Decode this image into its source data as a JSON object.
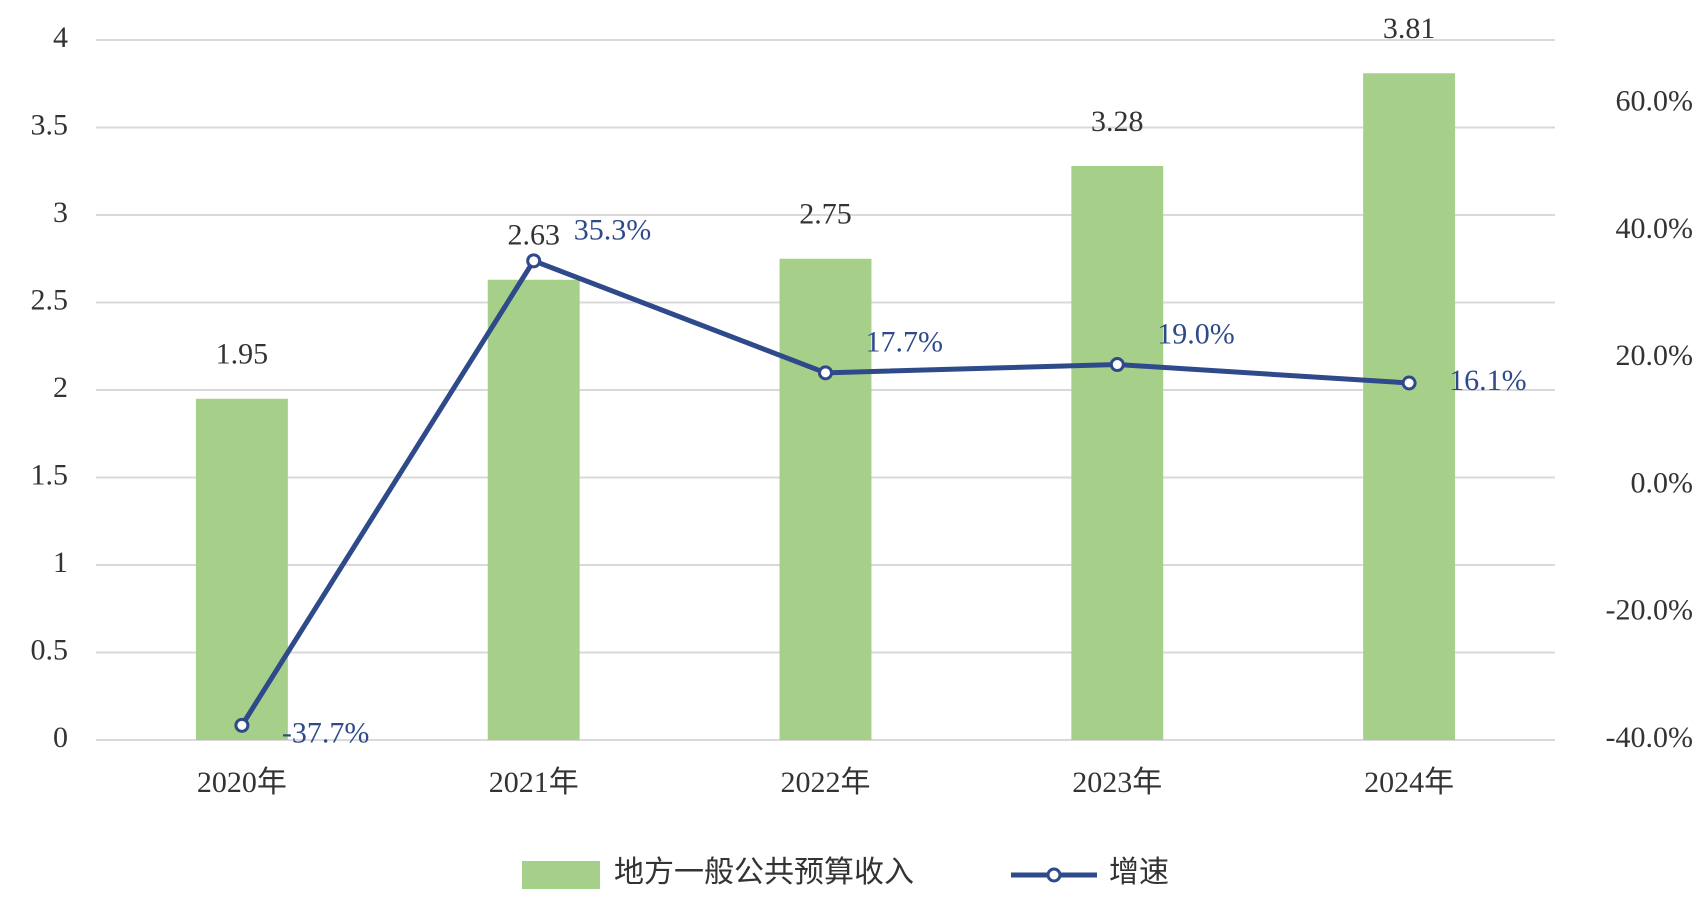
{
  "chart_data": {
    "type": "bar-line",
    "categories": [
      "2020年",
      "2021年",
      "2022年",
      "2023年",
      "2024年"
    ],
    "series": [
      {
        "name": "地方一般公共预算收入",
        "type": "bar",
        "color": "#a6d08a",
        "values": [
          1.95,
          2.63,
          2.75,
          3.28,
          3.81
        ]
      },
      {
        "name": "增速",
        "type": "line",
        "axis": "y2",
        "color": "#2e4a8a",
        "values": [
          -37.7,
          35.3,
          17.7,
          19.0,
          16.1
        ],
        "value_labels": [
          "-37.7%",
          "35.3%",
          "17.7%",
          "19.0%",
          "16.1%"
        ]
      }
    ],
    "ylim": [
      0,
      4
    ],
    "yticks": [
      0,
      0.5,
      1,
      1.5,
      2,
      2.5,
      3,
      3.5,
      4
    ],
    "y2lim": [
      -40,
      70
    ],
    "y2ticks": [
      {
        "value": -40,
        "label": "-40.0%"
      },
      {
        "value": -20,
        "label": "-20.0%"
      },
      {
        "value": 0,
        "label": "0.0%"
      },
      {
        "value": 20,
        "label": "20.0%"
      },
      {
        "value": 40,
        "label": "40.0%"
      },
      {
        "value": 60,
        "label": "60.0%"
      }
    ],
    "grid": true,
    "legend": "bottom"
  }
}
